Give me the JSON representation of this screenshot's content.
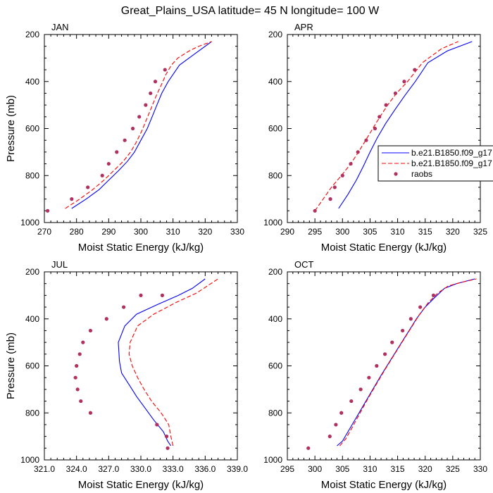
{
  "figure_title": "Great_Plains_USA  latitude= 45 N longitude= 100 W",
  "colors": {
    "model_a": "#0000ff",
    "model_b": "#ff0000",
    "raobs": "#b03060"
  },
  "legend": {
    "placement": "right of APR panel",
    "entries": [
      {
        "label": "b.e21.B1850.f09_g17",
        "style": "solid-line",
        "color": "#0000ff"
      },
      {
        "label": "b.e21.B1850.f09_g17",
        "style": "dashed-line",
        "color": "#ff0000"
      },
      {
        "label": "raobs",
        "style": "marker",
        "color": "#b03060"
      }
    ]
  },
  "chart_data": [
    {
      "type": "line",
      "panel": "JAN",
      "xlabel": "Moist Static Energy (kJ/kg)",
      "ylabel": "Pressure (mb)",
      "xlim": [
        270,
        330
      ],
      "ylim": [
        1000,
        200
      ],
      "y_inverted": true,
      "xticks": [
        "270",
        "280",
        "290",
        "300",
        "310",
        "320",
        "330"
      ],
      "yticks": [
        "200",
        "400",
        "600",
        "800",
        "1000"
      ],
      "xtick_values": [
        270,
        280,
        290,
        300,
        310,
        320,
        330
      ],
      "ytick_values": [
        200,
        400,
        600,
        800,
        1000
      ],
      "series": [
        {
          "style": "solid",
          "color": "#0000ff",
          "x": [
            278.5,
            283,
            287,
            290,
            293,
            295.8,
            298,
            300,
            302,
            303.5,
            305,
            306.5,
            308.5,
            312,
            317,
            322
          ],
          "y": [
            940,
            900,
            860,
            820,
            780,
            740,
            700,
            650,
            600,
            550,
            500,
            450,
            400,
            330,
            280,
            230
          ]
        },
        {
          "style": "dashed",
          "color": "#ff0000",
          "x": [
            276.5,
            281,
            285,
            288.5,
            291.5,
            294.5,
            296.8,
            298.5,
            300.3,
            301.8,
            303.3,
            304.8,
            306.5,
            307.8,
            309.5,
            311.5,
            315,
            318,
            322
          ],
          "y": [
            940,
            900,
            860,
            820,
            780,
            740,
            700,
            660,
            610,
            560,
            510,
            460,
            410,
            370,
            330,
            300,
            270,
            250,
            230
          ]
        },
        {
          "style": "markers",
          "color": "#b03060",
          "x": [
            271,
            278.5,
            283.5,
            288,
            290,
            292.5,
            295,
            297.5,
            299.5,
            301.5,
            303,
            304.5,
            307.5
          ],
          "y": [
            950,
            900,
            850,
            800,
            750,
            700,
            650,
            600,
            550,
            500,
            450,
            400,
            350
          ]
        }
      ]
    },
    {
      "type": "line",
      "panel": "APR",
      "xlabel": "Moist Static Energy (kJ/kg)",
      "ylabel": "",
      "xlim": [
        290,
        325
      ],
      "ylim": [
        1000,
        200
      ],
      "y_inverted": true,
      "xticks": [
        "290",
        "295",
        "300",
        "305",
        "310",
        "315",
        "320",
        "325"
      ],
      "yticks": [
        "200",
        "400",
        "600",
        "800",
        "1000"
      ],
      "xtick_values": [
        290,
        295,
        300,
        305,
        310,
        315,
        320,
        325
      ],
      "ytick_values": [
        200,
        400,
        600,
        800,
        1000
      ],
      "series": [
        {
          "style": "solid",
          "color": "#0000ff",
          "x": [
            299.3,
            301,
            302.5,
            303.8,
            305,
            306.3,
            307.8,
            309.5,
            311.3,
            313.2,
            315.5,
            319,
            323.5
          ],
          "y": [
            940,
            880,
            820,
            760,
            700,
            640,
            580,
            520,
            460,
            400,
            320,
            270,
            230
          ]
        },
        {
          "style": "dashed",
          "color": "#ff0000",
          "x": [
            295,
            296.5,
            298,
            299.8,
            301.5,
            302.9,
            304.2,
            305.5,
            306.8,
            308.2,
            309.8,
            311.8,
            314.5,
            318,
            321
          ],
          "y": [
            950,
            900,
            850,
            800,
            750,
            700,
            650,
            600,
            550,
            500,
            450,
            400,
            320,
            260,
            230
          ]
        },
        {
          "style": "markers",
          "color": "#b03060",
          "x": [
            295,
            297.8,
            298.6,
            300,
            301.5,
            302.8,
            304.3,
            305.9,
            306.7,
            307.9,
            309.6,
            311.2,
            313.1
          ],
          "y": [
            950,
            900,
            850,
            800,
            750,
            700,
            650,
            600,
            550,
            500,
            450,
            400,
            350
          ]
        }
      ]
    },
    {
      "type": "line",
      "panel": "JUL",
      "xlabel": "Moist Static Energy (kJ/kg)",
      "ylabel": "Pressure (mb)",
      "xlim": [
        321,
        339
      ],
      "ylim": [
        1000,
        200
      ],
      "y_inverted": true,
      "xticks": [
        "321.0",
        "324.0",
        "327.0",
        "330.0",
        "333.0",
        "336.0",
        "339.0"
      ],
      "yticks": [
        "200",
        "400",
        "600",
        "800",
        "1000"
      ],
      "xtick_values": [
        321,
        324,
        327,
        330,
        333,
        336,
        339
      ],
      "ytick_values": [
        200,
        400,
        600,
        800,
        1000
      ],
      "series": [
        {
          "style": "solid",
          "color": "#0000ff",
          "x": [
            332.8,
            332.5,
            332.1,
            331.2,
            330.4,
            329.6,
            328.9,
            328.2,
            328.0,
            327.9,
            328.5,
            329.6,
            331.5,
            333.5,
            334.8,
            336
          ],
          "y": [
            940,
            920,
            880,
            830,
            780,
            730,
            680,
            630,
            580,
            500,
            430,
            380,
            340,
            300,
            270,
            230
          ]
        },
        {
          "style": "dashed",
          "color": "#ff0000",
          "x": [
            333,
            332.8,
            332.6,
            331.9,
            331.0,
            330.3,
            329.7,
            329.2,
            328.9,
            329.0,
            329.7,
            331.2,
            333.3,
            335.2,
            337.2
          ],
          "y": [
            940,
            900,
            850,
            800,
            750,
            700,
            650,
            600,
            550,
            500,
            430,
            380,
            330,
            290,
            230
          ]
        },
        {
          "style": "markers",
          "color": "#b03060",
          "x": [
            332.5,
            332.4,
            331.5,
            325.3,
            324.4,
            324.1,
            323.9,
            324.0,
            324.3,
            324.6,
            325.3,
            326.8,
            328.4,
            330.0,
            332.0
          ],
          "y": [
            950,
            900,
            850,
            800,
            750,
            700,
            650,
            600,
            550,
            500,
            450,
            400,
            350,
            300,
            300
          ]
        }
      ]
    },
    {
      "type": "line",
      "panel": "OCT",
      "xlabel": "Moist Static Energy (kJ/kg)",
      "ylabel": "",
      "xlim": [
        295,
        330
      ],
      "ylim": [
        1000,
        200
      ],
      "y_inverted": true,
      "xticks": [
        "295",
        "300",
        "305",
        "310",
        "315",
        "320",
        "325",
        "330"
      ],
      "yticks": [
        "200",
        "400",
        "600",
        "800",
        "1000"
      ],
      "xtick_values": [
        295,
        300,
        305,
        310,
        315,
        320,
        325,
        330
      ],
      "ytick_values": [
        200,
        400,
        600,
        800,
        1000
      ],
      "series": [
        {
          "style": "solid",
          "color": "#0000ff",
          "x": [
            304,
            305,
            306,
            307.5,
            309,
            310.5,
            312,
            313.6,
            315.2,
            316.8,
            318.4,
            320,
            321.7,
            323.5,
            325.7,
            329
          ],
          "y": [
            940,
            920,
            880,
            820,
            760,
            700,
            640,
            580,
            520,
            460,
            400,
            350,
            310,
            270,
            250,
            230
          ]
        },
        {
          "style": "dashed",
          "color": "#ff0000",
          "x": [
            304.5,
            305.6,
            306.8,
            308.2,
            309.6,
            311.1,
            312.6,
            314.2,
            315.8,
            317.4,
            319,
            320.6,
            322.3,
            324.2,
            326.5,
            329.3
          ],
          "y": [
            940,
            910,
            860,
            800,
            740,
            680,
            620,
            560,
            500,
            440,
            380,
            330,
            290,
            260,
            245,
            230
          ]
        },
        {
          "style": "markers",
          "color": "#b03060",
          "x": [
            298.8,
            302.7,
            303.8,
            304.8,
            306.6,
            308.3,
            309.8,
            311.2,
            312.7,
            314,
            315.9,
            317.4,
            319.1,
            321.5
          ],
          "y": [
            950,
            900,
            850,
            800,
            750,
            700,
            650,
            600,
            550,
            500,
            450,
            400,
            350,
            300
          ]
        }
      ]
    }
  ]
}
